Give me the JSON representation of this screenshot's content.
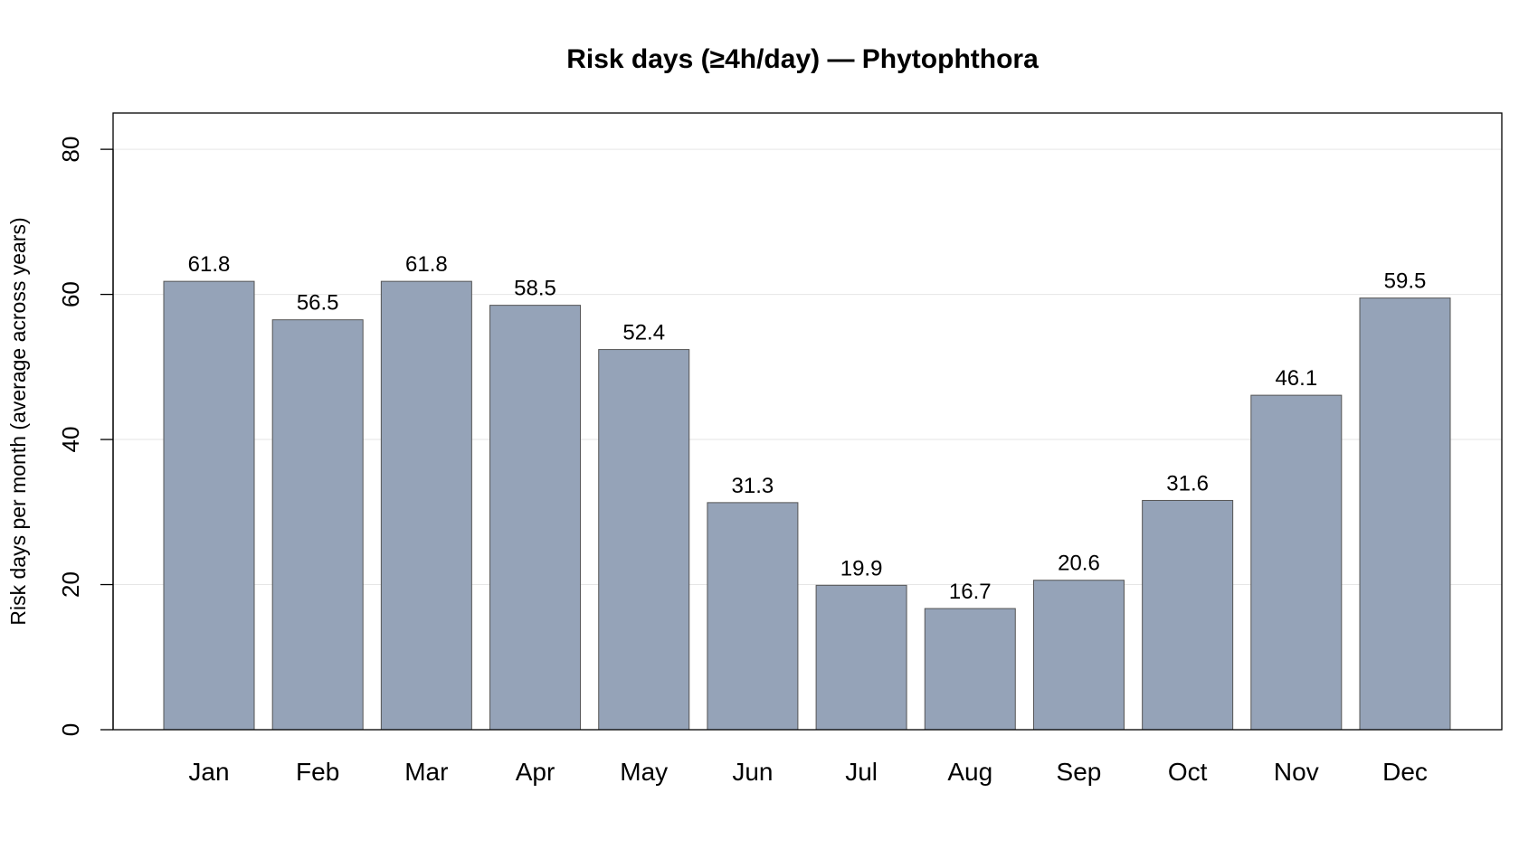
{
  "chart_data": {
    "type": "bar",
    "title": "Risk days (≥4h/day) — Phytophthora",
    "xlabel": "",
    "ylabel": "Risk days per month (average across years)",
    "categories": [
      "Jan",
      "Feb",
      "Mar",
      "Apr",
      "May",
      "Jun",
      "Jul",
      "Aug",
      "Sep",
      "Oct",
      "Nov",
      "Dec"
    ],
    "values": [
      61.8,
      56.5,
      61.8,
      58.5,
      52.4,
      31.3,
      19.9,
      16.7,
      20.6,
      31.6,
      46.1,
      59.5
    ],
    "value_labels": [
      "61.8",
      "56.5",
      "61.8",
      "58.5",
      "52.4",
      "31.3",
      "19.9",
      "16.7",
      "20.6",
      "31.6",
      "46.1",
      "59.5"
    ],
    "yticks": [
      0,
      20,
      40,
      60,
      80
    ],
    "ytick_labels": [
      "0",
      "20",
      "40",
      "60",
      "80"
    ],
    "ylim": [
      0,
      85
    ],
    "grid": true,
    "legend": "none",
    "colors": {
      "bar_fill": "#95a3b8",
      "bar_stroke": "#555555",
      "grid": "#e6e6e6",
      "frame": "#000000"
    }
  }
}
